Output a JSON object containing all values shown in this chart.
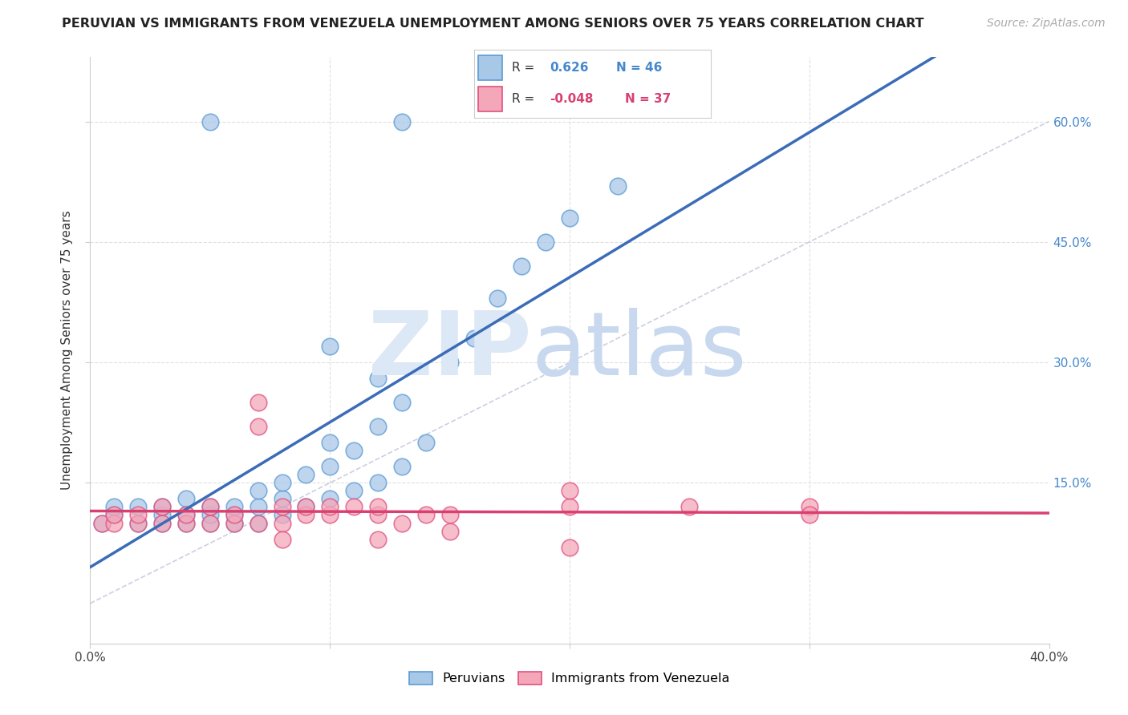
{
  "title": "PERUVIAN VS IMMIGRANTS FROM VENEZUELA UNEMPLOYMENT AMONG SENIORS OVER 75 YEARS CORRELATION CHART",
  "source": "Source: ZipAtlas.com",
  "ylabel": "Unemployment Among Seniors over 75 years",
  "right_yticklabels": [
    "15.0%",
    "30.0%",
    "45.0%",
    "60.0%"
  ],
  "right_ytick_vals": [
    0.15,
    0.3,
    0.45,
    0.6
  ],
  "xmin": 0.0,
  "xmax": 0.4,
  "ymin": -0.05,
  "ymax": 0.68,
  "blue_color": "#A8C8E8",
  "blue_edge_color": "#5B9BD5",
  "pink_color": "#F4A7B9",
  "pink_edge_color": "#E05080",
  "blue_line_color": "#3B6CB7",
  "pink_line_color": "#D94070",
  "ref_line_color": "#C0C4D8",
  "grid_color": "#E0E0E0",
  "peruvians_x": [
    0.005,
    0.01,
    0.01,
    0.02,
    0.02,
    0.03,
    0.03,
    0.03,
    0.04,
    0.04,
    0.04,
    0.05,
    0.05,
    0.05,
    0.06,
    0.06,
    0.06,
    0.07,
    0.07,
    0.07,
    0.08,
    0.08,
    0.08,
    0.09,
    0.09,
    0.1,
    0.1,
    0.1,
    0.11,
    0.11,
    0.12,
    0.12,
    0.13,
    0.13,
    0.14,
    0.15,
    0.16,
    0.17,
    0.18,
    0.19,
    0.2,
    0.22,
    0.05,
    0.13,
    0.1,
    0.12
  ],
  "peruvians_y": [
    0.1,
    0.11,
    0.12,
    0.1,
    0.12,
    0.1,
    0.11,
    0.12,
    0.1,
    0.11,
    0.13,
    0.1,
    0.11,
    0.12,
    0.1,
    0.11,
    0.12,
    0.1,
    0.12,
    0.14,
    0.11,
    0.13,
    0.15,
    0.12,
    0.16,
    0.13,
    0.17,
    0.2,
    0.14,
    0.19,
    0.15,
    0.22,
    0.17,
    0.25,
    0.2,
    0.3,
    0.33,
    0.38,
    0.42,
    0.45,
    0.48,
    0.52,
    0.6,
    0.6,
    0.32,
    0.28
  ],
  "venezuela_x": [
    0.005,
    0.01,
    0.01,
    0.02,
    0.02,
    0.03,
    0.03,
    0.04,
    0.04,
    0.05,
    0.05,
    0.06,
    0.06,
    0.07,
    0.07,
    0.08,
    0.08,
    0.09,
    0.09,
    0.1,
    0.1,
    0.11,
    0.12,
    0.12,
    0.13,
    0.14,
    0.15,
    0.2,
    0.2,
    0.25,
    0.3,
    0.3,
    0.08,
    0.12,
    0.15,
    0.2,
    0.07
  ],
  "venezuela_y": [
    0.1,
    0.1,
    0.11,
    0.1,
    0.11,
    0.1,
    0.12,
    0.1,
    0.11,
    0.1,
    0.12,
    0.1,
    0.11,
    0.1,
    0.25,
    0.1,
    0.12,
    0.11,
    0.12,
    0.11,
    0.12,
    0.12,
    0.11,
    0.12,
    0.1,
    0.11,
    0.11,
    0.12,
    0.14,
    0.12,
    0.12,
    0.11,
    0.08,
    0.08,
    0.09,
    0.07,
    0.22
  ]
}
